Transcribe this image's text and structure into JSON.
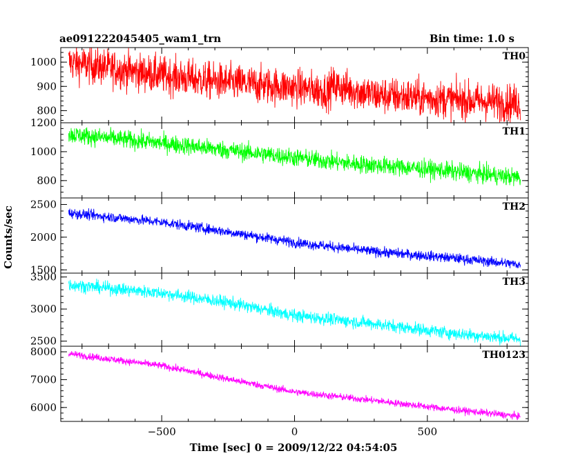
{
  "chart_data": {
    "type": "line",
    "title": "ae091222045405_wam1_trn",
    "bin_time": "Bin time: 1.0 s",
    "xlabel": "Time [sec] 0 = 2009/12/22 04:54:05",
    "ylabel": "Counts/sec",
    "xlim": [
      -880,
      880
    ],
    "x_ticks": [
      -500,
      0,
      500
    ],
    "x_tick_labels": [
      "−500",
      "0",
      "500"
    ],
    "x_range": [
      -850,
      850
    ],
    "panels": [
      {
        "name": "TH0",
        "color": "#ff0000",
        "ylim": [
          750,
          1060
        ],
        "y_ticks": [
          800,
          900,
          1000
        ],
        "y_tick_labels": [
          "800",
          "900",
          "1000"
        ],
        "y_top_label": "",
        "trend": [
          [
            -850,
            1000
          ],
          [
            -600,
            960
          ],
          [
            -300,
            920
          ],
          [
            0,
            895
          ],
          [
            130,
            880
          ],
          [
            140,
            905
          ],
          [
            300,
            865
          ],
          [
            600,
            845
          ],
          [
            850,
            830
          ]
        ],
        "noise": 55
      },
      {
        "name": "TH1",
        "color": "#00ff00",
        "ylim": [
          680,
          1200
        ],
        "y_ticks": [
          800,
          1000
        ],
        "y_tick_labels": [
          "800",
          "1000"
        ],
        "y_top_label": "1200",
        "trend": [
          [
            -850,
            1120
          ],
          [
            -500,
            1060
          ],
          [
            -200,
            1000
          ],
          [
            0,
            960
          ],
          [
            200,
            920
          ],
          [
            500,
            880
          ],
          [
            850,
            820
          ]
        ],
        "noise": 45
      },
      {
        "name": "TH2",
        "color": "#0000ff",
        "ylim": [
          1450,
          2600
        ],
        "y_ticks": [
          1500,
          2000,
          2500
        ],
        "y_tick_labels": [
          "1500",
          "2000",
          "2500"
        ],
        "y_top_label": "",
        "trend": [
          [
            -850,
            2370
          ],
          [
            -500,
            2230
          ],
          [
            -250,
            2080
          ],
          [
            0,
            1920
          ],
          [
            300,
            1780
          ],
          [
            600,
            1680
          ],
          [
            850,
            1580
          ]
        ],
        "noise": 55
      },
      {
        "name": "TH3",
        "color": "#00ffff",
        "ylim": [
          2420,
          3560
        ],
        "y_ticks": [
          2500,
          3000,
          3500
        ],
        "y_tick_labels": [
          "2500",
          "3000",
          "3500"
        ],
        "y_top_label": "",
        "trend": [
          [
            -850,
            3380
          ],
          [
            -500,
            3250
          ],
          [
            -250,
            3100
          ],
          [
            0,
            2900
          ],
          [
            300,
            2770
          ],
          [
            600,
            2620
          ],
          [
            850,
            2530
          ]
        ],
        "noise": 70
      },
      {
        "name": "TH0123",
        "color": "#ff00ff",
        "ylim": [
          5500,
          8200
        ],
        "y_ticks": [
          6000,
          7000,
          8000
        ],
        "y_tick_labels": [
          "6000",
          "7000",
          "8000"
        ],
        "y_top_label": "",
        "trend": [
          [
            -850,
            7930
          ],
          [
            -500,
            7500
          ],
          [
            -250,
            7020
          ],
          [
            0,
            6560
          ],
          [
            300,
            6250
          ],
          [
            600,
            5920
          ],
          [
            850,
            5680
          ]
        ],
        "noise": 90
      }
    ],
    "grid": false,
    "legend": "none"
  }
}
